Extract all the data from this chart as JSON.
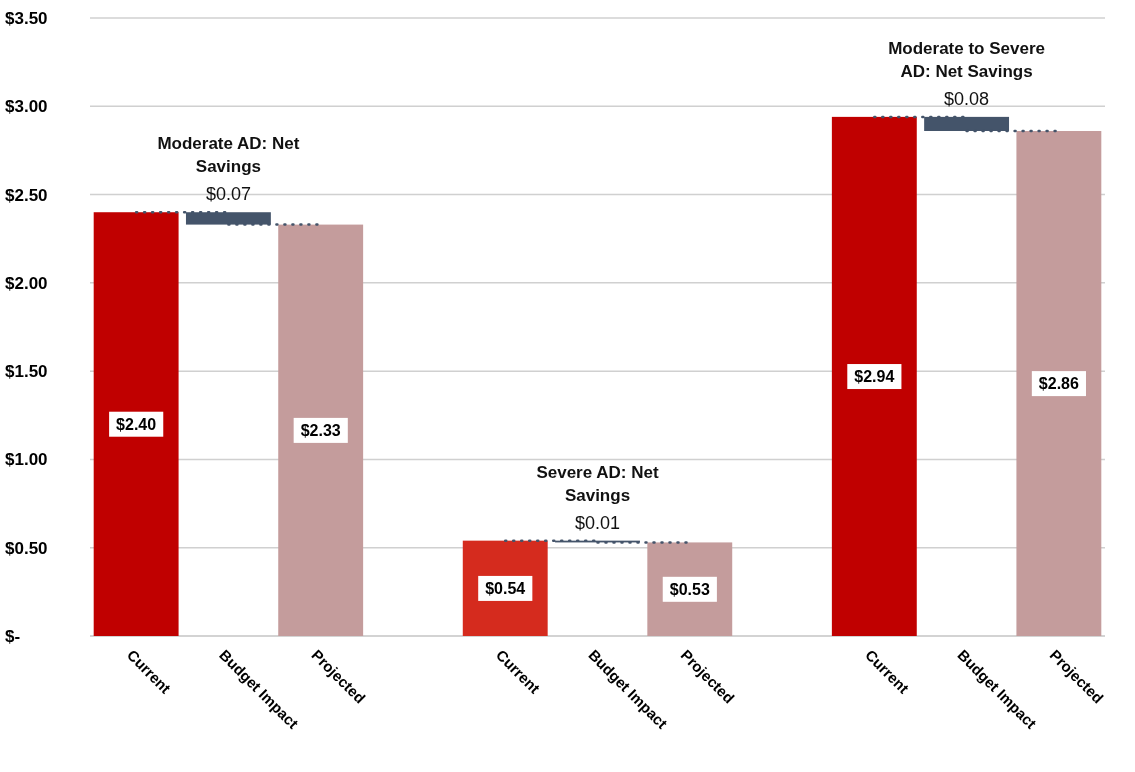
{
  "chart_data": {
    "type": "bar",
    "categories": [
      "Current",
      "Budget Impact",
      "Projected",
      null,
      "Current",
      "Budget Impact",
      "Projected",
      null,
      "Current",
      "Budget Impact",
      "Projected"
    ],
    "values": [
      2.4,
      0.07,
      2.33,
      null,
      0.54,
      0.01,
      0.53,
      null,
      2.94,
      0.08,
      2.86
    ],
    "base": [
      0,
      2.33,
      0,
      null,
      0,
      0.53,
      0,
      null,
      0,
      2.86,
      0
    ],
    "colors": [
      "#c00000",
      "#44546a",
      "#c49c9c",
      null,
      "#d52b1e",
      "#44546a",
      "#c49c9c",
      null,
      "#c00000",
      "#44546a",
      "#c49c9c"
    ],
    "value_labels": [
      "$2.40",
      "$0.07",
      "$2.33",
      null,
      "$0.54",
      "$0.01",
      "$0.53",
      null,
      "$2.94",
      "$0.08",
      "$2.86"
    ],
    "annotations": [
      "Moderate AD: Net Savings",
      "Severe AD: Net Savings",
      "Moderate to Severe AD: Net Savings"
    ],
    "ylim": [
      0,
      3.5
    ],
    "yticks": [
      {
        "value": 0,
        "label": "$-"
      },
      {
        "value": 0.5,
        "label": "$0.50"
      },
      {
        "value": 1,
        "label": "$1.00"
      },
      {
        "value": 1.5,
        "label": "$1.50"
      },
      {
        "value": 2,
        "label": "$2.00"
      },
      {
        "value": 2.5,
        "label": "$2.50"
      },
      {
        "value": 3,
        "label": "$3.00"
      },
      {
        "value": 3.5,
        "label": "$3.50"
      }
    ],
    "grid": "y"
  }
}
